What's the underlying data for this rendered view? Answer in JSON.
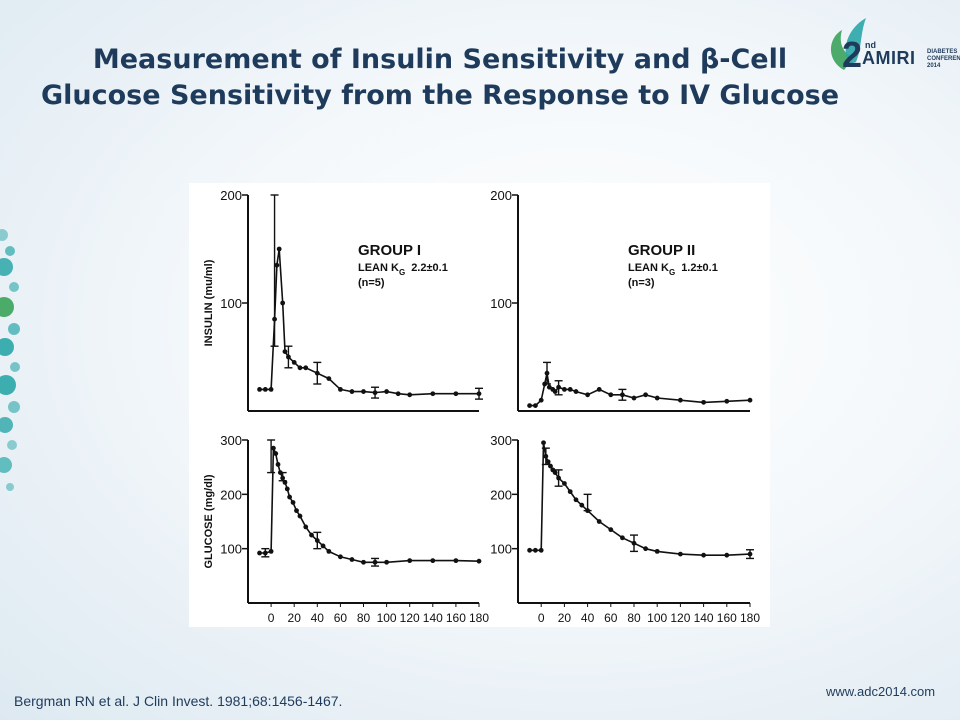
{
  "slide": {
    "title_line1": "Measurement of Insulin Sensitivity and β-Cell",
    "title_line2": "Glucose Sensitivity from the Response to IV Glucose",
    "citation": "Bergman RN et al. J Clin Invest. 1981;68:1456-1467.",
    "footer_url": "www.adc2014.com",
    "logo": {
      "number": "2",
      "superscript": "nd",
      "name": "AMIRI",
      "subtitle": "DIABETES CONFERENCE 2014"
    },
    "colors": {
      "title": "#1f3b5c",
      "accent_teal": "#2aa6a8",
      "accent_green": "#3aa35a"
    }
  },
  "chart_data": [
    {
      "type": "line",
      "panel": "top-left",
      "ylabel": "INSULIN (mu/ml)",
      "y_ticks": [
        100,
        200
      ],
      "ylim": [
        0,
        200
      ],
      "xlim": [
        -20,
        180
      ],
      "group_label": "GROUP I",
      "label_line2_prefix": "LEAN K",
      "label_line2_sub": "G",
      "label_line2_value": "2.2±0.1",
      "label_line3": "(n=5)",
      "x": [
        -10,
        -5,
        0,
        3,
        5,
        7,
        10,
        12,
        15,
        20,
        25,
        30,
        40,
        50,
        60,
        70,
        80,
        90,
        100,
        110,
        120,
        140,
        160,
        180
      ],
      "y": [
        20,
        20,
        20,
        85,
        135,
        150,
        100,
        55,
        50,
        45,
        40,
        40,
        35,
        30,
        20,
        18,
        18,
        17,
        18,
        16,
        15,
        16,
        16,
        16
      ],
      "error_bars": [
        {
          "x": 3,
          "low": 60,
          "high": 200
        },
        {
          "x": 15,
          "low": 40,
          "high": 60
        },
        {
          "x": 40,
          "low": 25,
          "high": 45
        },
        {
          "x": 90,
          "low": 12,
          "high": 22
        },
        {
          "x": 180,
          "low": 11,
          "high": 21
        }
      ]
    },
    {
      "type": "line",
      "panel": "top-right",
      "y_ticks": [
        100,
        200
      ],
      "ylim": [
        0,
        200
      ],
      "xlim": [
        -20,
        180
      ],
      "group_label": "GROUP II",
      "label_line2_prefix": "LEAN K",
      "label_line2_sub": "G",
      "label_line2_value": "1.2±0.1",
      "label_line3": "(n=3)",
      "x": [
        -10,
        -5,
        0,
        3,
        5,
        7,
        10,
        12,
        15,
        20,
        25,
        30,
        40,
        50,
        60,
        70,
        80,
        90,
        100,
        120,
        140,
        160,
        180
      ],
      "y": [
        5,
        5,
        10,
        25,
        35,
        22,
        20,
        18,
        22,
        20,
        20,
        18,
        15,
        20,
        15,
        15,
        12,
        15,
        12,
        10,
        8,
        9,
        10
      ],
      "error_bars": [
        {
          "x": 5,
          "low": 25,
          "high": 45
        },
        {
          "x": 15,
          "low": 15,
          "high": 28
        },
        {
          "x": 70,
          "low": 10,
          "high": 20
        }
      ]
    },
    {
      "type": "line",
      "panel": "bottom-left",
      "ylabel": "GLUCOSE (mg/dl)",
      "y_ticks": [
        100,
        200,
        300
      ],
      "x_ticks": [
        0,
        20,
        40,
        60,
        80,
        100,
        120,
        140,
        160,
        180
      ],
      "ylim": [
        0,
        300
      ],
      "xlim": [
        -20,
        180
      ],
      "x": [
        -10,
        -5,
        0,
        2,
        4,
        6,
        8,
        10,
        12,
        14,
        16,
        19,
        22,
        25,
        30,
        35,
        40,
        45,
        50,
        60,
        70,
        80,
        90,
        100,
        120,
        140,
        160,
        180
      ],
      "y": [
        92,
        92,
        95,
        285,
        275,
        255,
        240,
        230,
        222,
        210,
        195,
        185,
        170,
        160,
        140,
        125,
        115,
        105,
        95,
        85,
        80,
        75,
        75,
        75,
        78,
        78,
        78,
        77
      ],
      "error_bars": [
        {
          "x": -5,
          "low": 85,
          "high": 100
        },
        {
          "x": 0,
          "low": 240,
          "high": 300
        },
        {
          "x": 10,
          "low": 225,
          "high": 240
        },
        {
          "x": 40,
          "low": 100,
          "high": 130
        },
        {
          "x": 90,
          "low": 68,
          "high": 82
        }
      ]
    },
    {
      "type": "line",
      "panel": "bottom-right",
      "y_ticks": [
        100,
        200,
        300
      ],
      "x_ticks": [
        0,
        20,
        40,
        60,
        80,
        100,
        120,
        140,
        160,
        180
      ],
      "ylim": [
        0,
        300
      ],
      "xlim": [
        -20,
        180
      ],
      "x": [
        -10,
        -5,
        0,
        2,
        4,
        6,
        8,
        10,
        12,
        15,
        20,
        25,
        30,
        35,
        40,
        50,
        60,
        70,
        80,
        90,
        100,
        120,
        140,
        160,
        180
      ],
      "y": [
        97,
        97,
        97,
        295,
        270,
        260,
        252,
        245,
        240,
        230,
        220,
        205,
        190,
        180,
        170,
        150,
        135,
        120,
        110,
        100,
        95,
        90,
        88,
        88,
        90
      ],
      "error_bars": [
        {
          "x": 4,
          "low": 255,
          "high": 285
        },
        {
          "x": 15,
          "low": 215,
          "high": 245
        },
        {
          "x": 40,
          "low": 170,
          "high": 200
        },
        {
          "x": 80,
          "low": 95,
          "high": 125
        },
        {
          "x": 180,
          "low": 82,
          "high": 98
        }
      ]
    }
  ]
}
